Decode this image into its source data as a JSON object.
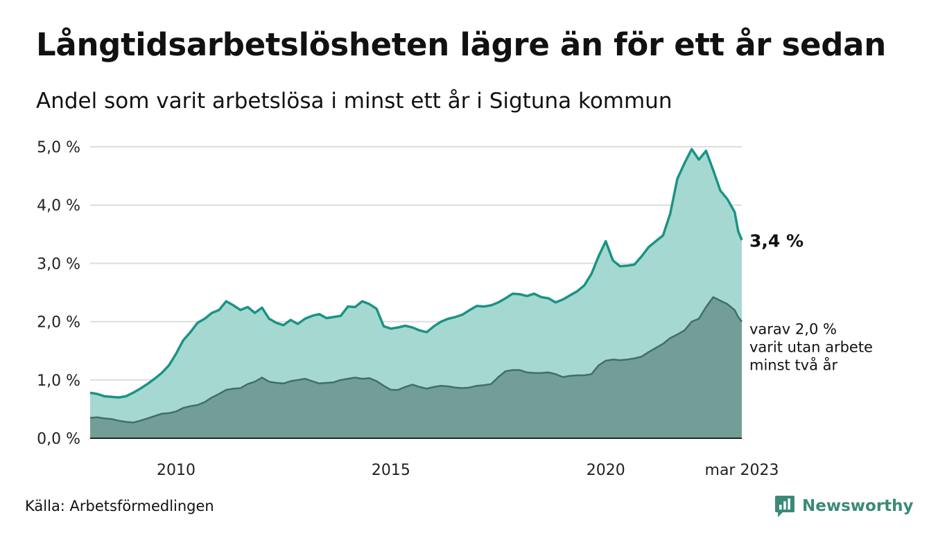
{
  "title": "Långtidsarbetslösheten lägre än för ett år sedan",
  "subtitle": "Andel som varit arbetslösa i minst ett år i Sigtuna kommun",
  "source": "Källa: Arbetsförmedlingen",
  "brand": "Newsworthy",
  "colors": {
    "total_line": "#1a9384",
    "total_fill": "#a6d8d2",
    "two_year_line": "#3f6f68",
    "two_year_fill": "#729e97",
    "grid": "#dddddd",
    "axis": "#222222",
    "brand": "#3a8a78"
  },
  "chart_data": {
    "type": "area",
    "x_start": "2008-01",
    "x_end": "2023-03",
    "x_ticks": [
      {
        "label": "2010",
        "x": "2010-01"
      },
      {
        "label": "2015",
        "x": "2015-01"
      },
      {
        "label": "2020",
        "x": "2020-01"
      },
      {
        "label": "mar 2023",
        "x": "2023-03"
      }
    ],
    "y_ticks": [
      "0,0 %",
      "1,0 %",
      "2,0 %",
      "3,0 %",
      "4,0 %",
      "5,0 %"
    ],
    "ylim": [
      0,
      5
    ],
    "grid": true,
    "series": [
      {
        "key": "total",
        "end_label": "3,4 %",
        "points": [
          [
            "2008-01",
            0.78
          ],
          [
            "2008-03",
            0.76
          ],
          [
            "2008-05",
            0.72
          ],
          [
            "2008-07",
            0.71
          ],
          [
            "2008-09",
            0.7
          ],
          [
            "2008-11",
            0.72
          ],
          [
            "2009-01",
            0.78
          ],
          [
            "2009-03",
            0.85
          ],
          [
            "2009-05",
            0.93
          ],
          [
            "2009-07",
            1.02
          ],
          [
            "2009-09",
            1.12
          ],
          [
            "2009-11",
            1.25
          ],
          [
            "2010-01",
            1.45
          ],
          [
            "2010-03",
            1.68
          ],
          [
            "2010-05",
            1.82
          ],
          [
            "2010-07",
            1.98
          ],
          [
            "2010-09",
            2.05
          ],
          [
            "2010-11",
            2.15
          ],
          [
            "2011-01",
            2.2
          ],
          [
            "2011-03",
            2.35
          ],
          [
            "2011-05",
            2.28
          ],
          [
            "2011-07",
            2.2
          ],
          [
            "2011-09",
            2.25
          ],
          [
            "2011-11",
            2.15
          ],
          [
            "2012-01",
            2.24
          ],
          [
            "2012-03",
            2.05
          ],
          [
            "2012-05",
            1.98
          ],
          [
            "2012-07",
            1.94
          ],
          [
            "2012-09",
            2.03
          ],
          [
            "2012-11",
            1.96
          ],
          [
            "2013-01",
            2.05
          ],
          [
            "2013-03",
            2.1
          ],
          [
            "2013-05",
            2.13
          ],
          [
            "2013-07",
            2.06
          ],
          [
            "2013-09",
            2.08
          ],
          [
            "2013-11",
            2.1
          ],
          [
            "2014-01",
            2.26
          ],
          [
            "2014-03",
            2.25
          ],
          [
            "2014-05",
            2.35
          ],
          [
            "2014-07",
            2.3
          ],
          [
            "2014-09",
            2.22
          ],
          [
            "2014-11",
            1.92
          ],
          [
            "2015-01",
            1.88
          ],
          [
            "2015-03",
            1.9
          ],
          [
            "2015-05",
            1.93
          ],
          [
            "2015-07",
            1.9
          ],
          [
            "2015-09",
            1.85
          ],
          [
            "2015-11",
            1.82
          ],
          [
            "2016-01",
            1.92
          ],
          [
            "2016-03",
            2.0
          ],
          [
            "2016-05",
            2.05
          ],
          [
            "2016-07",
            2.08
          ],
          [
            "2016-09",
            2.12
          ],
          [
            "2016-11",
            2.2
          ],
          [
            "2017-01",
            2.27
          ],
          [
            "2017-03",
            2.26
          ],
          [
            "2017-05",
            2.28
          ],
          [
            "2017-07",
            2.33
          ],
          [
            "2017-09",
            2.4
          ],
          [
            "2017-11",
            2.48
          ],
          [
            "2018-01",
            2.47
          ],
          [
            "2018-03",
            2.44
          ],
          [
            "2018-05",
            2.48
          ],
          [
            "2018-07",
            2.42
          ],
          [
            "2018-09",
            2.4
          ],
          [
            "2018-11",
            2.33
          ],
          [
            "2019-01",
            2.38
          ],
          [
            "2019-03",
            2.45
          ],
          [
            "2019-05",
            2.52
          ],
          [
            "2019-07",
            2.62
          ],
          [
            "2019-09",
            2.82
          ],
          [
            "2019-11",
            3.12
          ],
          [
            "2020-01",
            3.38
          ],
          [
            "2020-03",
            3.05
          ],
          [
            "2020-05",
            2.95
          ],
          [
            "2020-07",
            2.96
          ],
          [
            "2020-09",
            2.98
          ],
          [
            "2020-11",
            3.12
          ],
          [
            "2021-01",
            3.28
          ],
          [
            "2021-03",
            3.38
          ],
          [
            "2021-05",
            3.48
          ],
          [
            "2021-07",
            3.85
          ],
          [
            "2021-09",
            4.45
          ],
          [
            "2021-11",
            4.72
          ],
          [
            "2022-01",
            4.96
          ],
          [
            "2022-03",
            4.78
          ],
          [
            "2022-05",
            4.93
          ],
          [
            "2022-07",
            4.6
          ],
          [
            "2022-09",
            4.25
          ],
          [
            "2022-11",
            4.1
          ],
          [
            "2023-01",
            3.88
          ],
          [
            "2023-02",
            3.55
          ],
          [
            "2023-03",
            3.4
          ]
        ]
      },
      {
        "key": "two_year",
        "end_label": "varav 2,0 %\nvarit utan arbete\nminst två år",
        "points": [
          [
            "2008-01",
            0.35
          ],
          [
            "2008-03",
            0.36
          ],
          [
            "2008-05",
            0.34
          ],
          [
            "2008-07",
            0.33
          ],
          [
            "2008-09",
            0.3
          ],
          [
            "2008-11",
            0.28
          ],
          [
            "2009-01",
            0.27
          ],
          [
            "2009-03",
            0.3
          ],
          [
            "2009-05",
            0.34
          ],
          [
            "2009-07",
            0.38
          ],
          [
            "2009-09",
            0.42
          ],
          [
            "2009-11",
            0.43
          ],
          [
            "2010-01",
            0.46
          ],
          [
            "2010-03",
            0.52
          ],
          [
            "2010-05",
            0.55
          ],
          [
            "2010-07",
            0.57
          ],
          [
            "2010-09",
            0.62
          ],
          [
            "2010-11",
            0.7
          ],
          [
            "2011-01",
            0.76
          ],
          [
            "2011-03",
            0.83
          ],
          [
            "2011-05",
            0.85
          ],
          [
            "2011-07",
            0.86
          ],
          [
            "2011-09",
            0.93
          ],
          [
            "2011-11",
            0.97
          ],
          [
            "2012-01",
            1.04
          ],
          [
            "2012-03",
            0.97
          ],
          [
            "2012-05",
            0.95
          ],
          [
            "2012-07",
            0.94
          ],
          [
            "2012-09",
            0.98
          ],
          [
            "2012-11",
            1.0
          ],
          [
            "2013-01",
            1.02
          ],
          [
            "2013-03",
            0.98
          ],
          [
            "2013-05",
            0.94
          ],
          [
            "2013-07",
            0.95
          ],
          [
            "2013-09",
            0.96
          ],
          [
            "2013-11",
            1.0
          ],
          [
            "2014-01",
            1.02
          ],
          [
            "2014-03",
            1.04
          ],
          [
            "2014-05",
            1.02
          ],
          [
            "2014-07",
            1.03
          ],
          [
            "2014-09",
            0.98
          ],
          [
            "2014-11",
            0.9
          ],
          [
            "2015-01",
            0.83
          ],
          [
            "2015-03",
            0.83
          ],
          [
            "2015-05",
            0.88
          ],
          [
            "2015-07",
            0.92
          ],
          [
            "2015-09",
            0.88
          ],
          [
            "2015-11",
            0.85
          ],
          [
            "2016-01",
            0.88
          ],
          [
            "2016-03",
            0.9
          ],
          [
            "2016-05",
            0.89
          ],
          [
            "2016-07",
            0.87
          ],
          [
            "2016-09",
            0.86
          ],
          [
            "2016-11",
            0.87
          ],
          [
            "2017-01",
            0.9
          ],
          [
            "2017-03",
            0.91
          ],
          [
            "2017-05",
            0.93
          ],
          [
            "2017-07",
            1.05
          ],
          [
            "2017-09",
            1.15
          ],
          [
            "2017-11",
            1.17
          ],
          [
            "2018-01",
            1.17
          ],
          [
            "2018-03",
            1.13
          ],
          [
            "2018-05",
            1.12
          ],
          [
            "2018-07",
            1.12
          ],
          [
            "2018-09",
            1.13
          ],
          [
            "2018-11",
            1.1
          ],
          [
            "2019-01",
            1.05
          ],
          [
            "2019-03",
            1.07
          ],
          [
            "2019-05",
            1.08
          ],
          [
            "2019-07",
            1.08
          ],
          [
            "2019-09",
            1.1
          ],
          [
            "2019-11",
            1.25
          ],
          [
            "2020-01",
            1.33
          ],
          [
            "2020-03",
            1.35
          ],
          [
            "2020-05",
            1.34
          ],
          [
            "2020-07",
            1.35
          ],
          [
            "2020-09",
            1.37
          ],
          [
            "2020-11",
            1.4
          ],
          [
            "2021-01",
            1.48
          ],
          [
            "2021-03",
            1.55
          ],
          [
            "2021-05",
            1.62
          ],
          [
            "2021-07",
            1.72
          ],
          [
            "2021-09",
            1.78
          ],
          [
            "2021-11",
            1.85
          ],
          [
            "2022-01",
            2.0
          ],
          [
            "2022-03",
            2.05
          ],
          [
            "2022-05",
            2.25
          ],
          [
            "2022-07",
            2.42
          ],
          [
            "2022-09",
            2.36
          ],
          [
            "2022-11",
            2.3
          ],
          [
            "2023-01",
            2.2
          ],
          [
            "2023-02",
            2.08
          ],
          [
            "2023-03",
            2.0
          ]
        ]
      }
    ]
  }
}
